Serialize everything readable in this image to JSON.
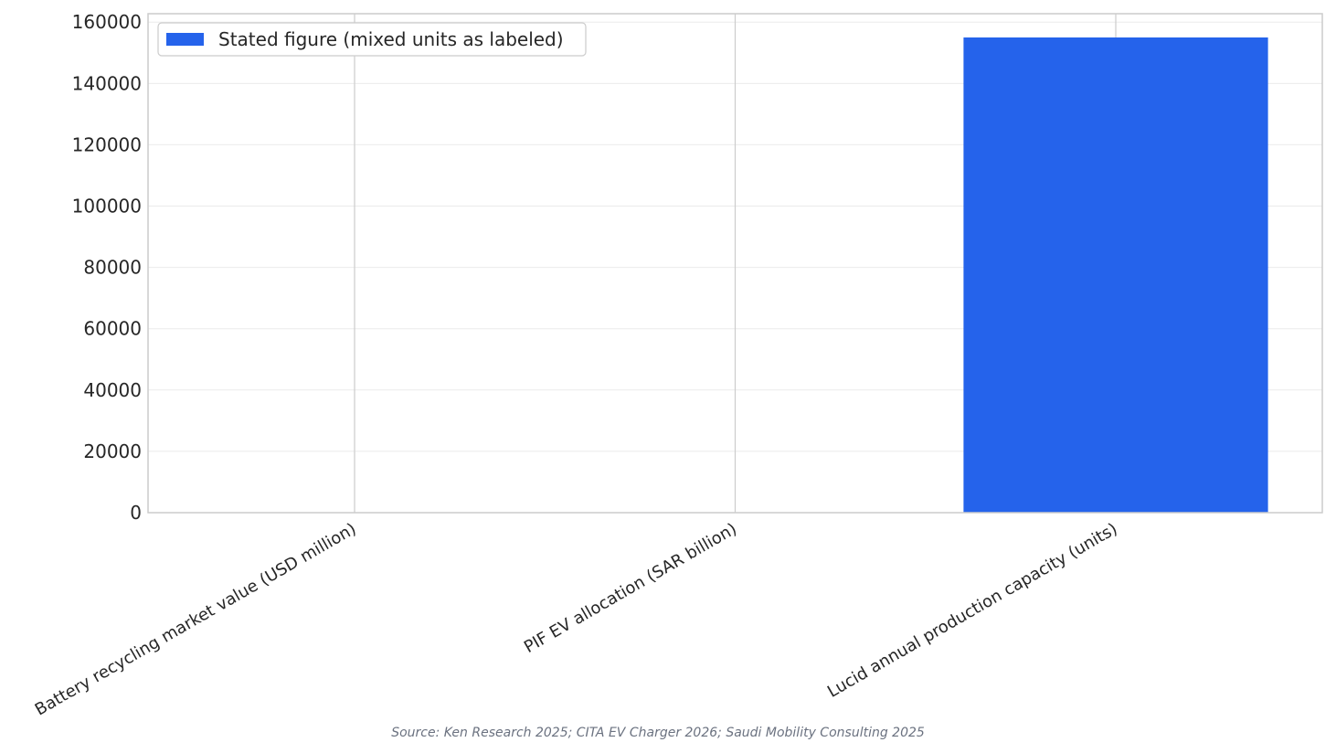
{
  "chart_data": {
    "type": "bar",
    "categories": [
      "Battery recycling market value (USD million)",
      "PIF EV allocation (SAR billion)",
      "Lucid annual production capacity (units)"
    ],
    "series": [
      {
        "name": "Stated figure (mixed units as labeled)",
        "color": "#2563eb",
        "values": [
          0,
          0,
          155000
        ]
      }
    ],
    "ylim": [
      0,
      162750
    ],
    "yticks": [
      0,
      20000,
      40000,
      60000,
      80000,
      100000,
      120000,
      140000,
      160000
    ],
    "grid": true,
    "legend": "upper-left",
    "source": "Source: Ken Research 2025; CITA EV Charger 2026; Saudi Mobility Consulting 2025"
  }
}
